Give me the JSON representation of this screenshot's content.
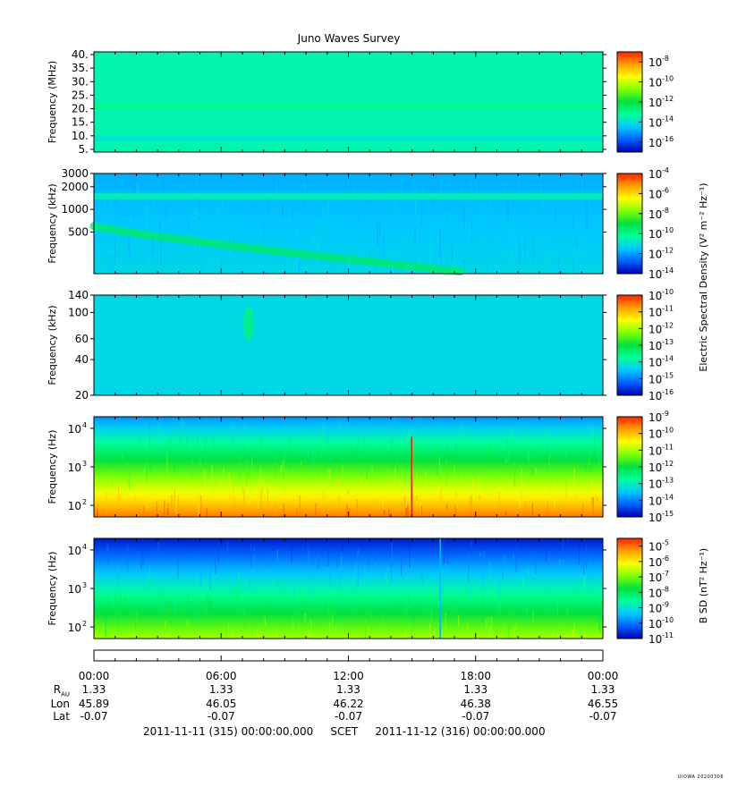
{
  "title": "Juno Waves Survey",
  "colors": {
    "palette": [
      "#0000b4",
      "#0060ff",
      "#00c8ff",
      "#00ff9a",
      "#00e040",
      "#80ff00",
      "#ffff00",
      "#ffa000",
      "#ff2000"
    ]
  },
  "panels": [
    {
      "ylabel": "Frequency (MHz)",
      "yticks": [
        "40.",
        "35.",
        "30.",
        "25.",
        "20.",
        "15.",
        "10.",
        "5."
      ],
      "colorbar": {
        "ticks": [
          {
            "base": "10",
            "exp": "-8"
          },
          {
            "base": "10",
            "exp": "-10"
          },
          {
            "base": "10",
            "exp": "-12"
          },
          {
            "base": "10",
            "exp": "-14"
          },
          {
            "base": "10",
            "exp": "-16"
          }
        ]
      }
    },
    {
      "ylabel": "Frequency (kHz)",
      "yticks": [
        "3000",
        "2000",
        "1000",
        "500"
      ],
      "colorbar": {
        "ticks": [
          {
            "base": "10",
            "exp": "-4"
          },
          {
            "base": "10",
            "exp": "-6"
          },
          {
            "base": "10",
            "exp": "-8"
          },
          {
            "base": "10",
            "exp": "-10"
          },
          {
            "base": "10",
            "exp": "-12"
          },
          {
            "base": "10",
            "exp": "-14"
          }
        ]
      }
    },
    {
      "ylabel": "Frequency (kHz)",
      "yticks": [
        "140",
        "100",
        "60",
        "40",
        "20"
      ],
      "colorbar": {
        "ticks": [
          {
            "base": "10",
            "exp": "-10"
          },
          {
            "base": "10",
            "exp": "-11"
          },
          {
            "base": "10",
            "exp": "-12"
          },
          {
            "base": "10",
            "exp": "-13"
          },
          {
            "base": "10",
            "exp": "-14"
          },
          {
            "base": "10",
            "exp": "-15"
          },
          {
            "base": "10",
            "exp": "-16"
          }
        ]
      }
    },
    {
      "ylabel": "Frequency (Hz)",
      "yticks": [
        {
          "base": "10",
          "exp": "4"
        },
        {
          "base": "10",
          "exp": "3"
        },
        {
          "base": "10",
          "exp": "2"
        }
      ],
      "colorbar": {
        "ticks": [
          {
            "base": "10",
            "exp": "-9"
          },
          {
            "base": "10",
            "exp": "-10"
          },
          {
            "base": "10",
            "exp": "-11"
          },
          {
            "base": "10",
            "exp": "-12"
          },
          {
            "base": "10",
            "exp": "-13"
          },
          {
            "base": "10",
            "exp": "-14"
          },
          {
            "base": "10",
            "exp": "-15"
          }
        ]
      }
    },
    {
      "ylabel": "Frequency (Hz)",
      "yticks": [
        {
          "base": "10",
          "exp": "4"
        },
        {
          "base": "10",
          "exp": "3"
        },
        {
          "base": "10",
          "exp": "2"
        }
      ],
      "colorbar": {
        "ticks": [
          {
            "base": "10",
            "exp": "-5"
          },
          {
            "base": "10",
            "exp": "-6"
          },
          {
            "base": "10",
            "exp": "-7"
          },
          {
            "base": "10",
            "exp": "-8"
          },
          {
            "base": "10",
            "exp": "-9"
          },
          {
            "base": "10",
            "exp": "-10"
          },
          {
            "base": "10",
            "exp": "-11"
          }
        ]
      }
    }
  ],
  "colorbar_labels": {
    "e_field": "Electric Spectral Density (V² m⁻² Hz⁻¹)",
    "b_field": "B SD (nT² Hz⁻¹)"
  },
  "chart_data": {
    "type": "heatmap",
    "title": "Juno Waves Survey",
    "x_axis": {
      "ticks": [
        "00:00",
        "06:00",
        "12:00",
        "18:00",
        "00:00"
      ],
      "start": "2011-11-11 (315) 00:00:00.000",
      "end": "2011-11-12 (316) 00:00:00.000",
      "label": "SCET"
    },
    "ephemeris": {
      "labels": [
        "R",
        "Lon",
        "Lat"
      ],
      "r_subscript": "AU",
      "R": [
        "1.33",
        "1.33",
        "1.33",
        "1.33",
        "1.33"
      ],
      "Lon": [
        "45.89",
        "46.05",
        "46.22",
        "46.38",
        "46.55"
      ],
      "Lat": [
        "-0.07",
        "-0.07",
        "-0.07",
        "-0.07",
        "-0.07"
      ]
    },
    "panels": [
      {
        "quantity": "electric",
        "ylabel": "Frequency (MHz)",
        "ylim": [
          4,
          41
        ],
        "yscale": "linear",
        "colorscale_log10": [
          -17,
          -7
        ],
        "features": [
          {
            "type": "band",
            "freq": 21,
            "level": -13
          },
          {
            "type": "band",
            "freq": 9,
            "level": -14
          }
        ],
        "background_level": -13.5
      },
      {
        "quantity": "electric",
        "ylabel": "Frequency (kHz)",
        "ylim": [
          140,
          3000
        ],
        "yscale": "log",
        "colorscale_log10": [
          -14,
          -4
        ],
        "features": [
          {
            "type": "band",
            "freq": 1500,
            "level": -10.5
          },
          {
            "type": "drifting",
            "freq_start": 600,
            "freq_end": 150,
            "level": -9.5
          }
        ],
        "background_level": -11.5
      },
      {
        "quantity": "electric",
        "ylabel": "Frequency (kHz)",
        "ylim": [
          20,
          140
        ],
        "yscale": "log",
        "colorscale_log10": [
          -16,
          -10
        ],
        "features": [
          {
            "type": "blob",
            "time_hour": 7.3,
            "freq": 80,
            "level": -13.5
          }
        ],
        "background_level": -14.3
      },
      {
        "quantity": "electric",
        "ylabel": "Frequency (Hz)",
        "ylim": [
          50,
          20000
        ],
        "yscale": "log",
        "colorscale_log10": [
          -15,
          -9
        ],
        "features": [
          {
            "type": "spike",
            "time_hour": 14.95,
            "freq_max": 6000,
            "level": -9
          }
        ],
        "background_level": "decreasing with frequency"
      },
      {
        "quantity": "magnetic",
        "ylabel": "Frequency (Hz)",
        "ylim": [
          50,
          20000
        ],
        "yscale": "log",
        "colorscale_log10": [
          -11,
          -4.5
        ],
        "features": [
          {
            "type": "spike",
            "time_hour": 16.3,
            "freq_max": 20000,
            "level": -9.5
          }
        ],
        "background_level": "decreasing with frequency"
      }
    ]
  },
  "footer": {
    "start": "2011-11-11 (315) 00:00:00.000",
    "scet": "SCET",
    "end": "2011-11-12 (316) 00:00:00.000"
  },
  "credit": "UIOWA 20200306"
}
